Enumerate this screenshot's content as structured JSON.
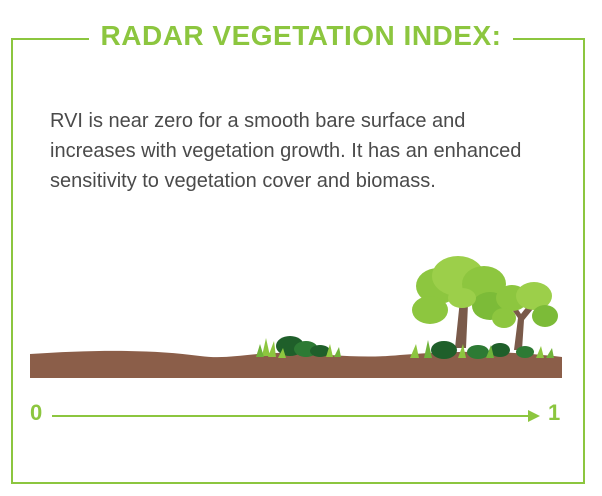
{
  "title": "RADAR VEGETATION INDEX:",
  "description": "RVI is near zero for a smooth bare surface and increases with vegetation growth. It has an enhanced sensitivity to vegetation cover and biomass.",
  "scale": {
    "min_label": "0",
    "max_label": "1"
  },
  "colors": {
    "accent": "#8cc63f",
    "soil": "#8b5e49",
    "text": "#4a4a4a",
    "leaf_light": "#8dc63f",
    "leaf_dark": "#1f5f2a",
    "trunk": "#7a5a4a"
  }
}
